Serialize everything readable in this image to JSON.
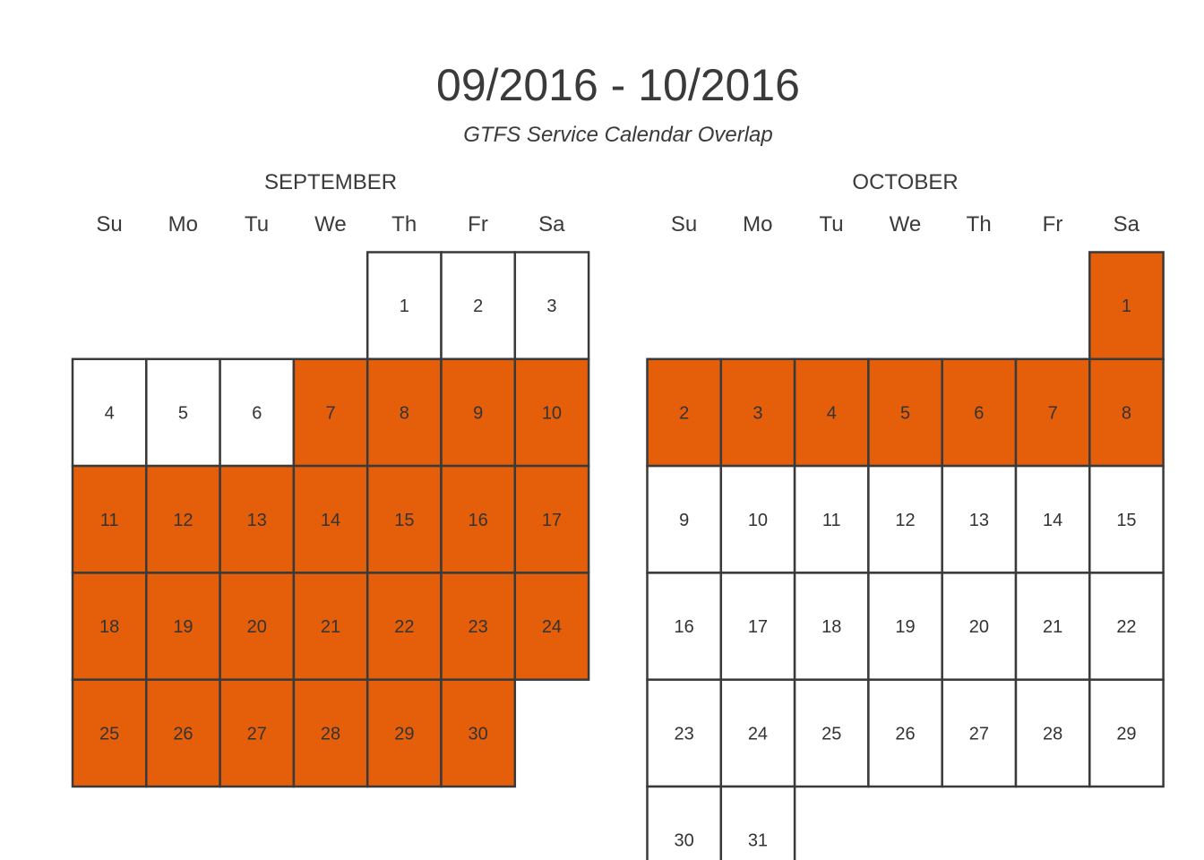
{
  "header": {
    "title": "09/2016 - 10/2016",
    "subtitle": "GTFS Service Calendar Overlap"
  },
  "colors": {
    "active": "#e55f0a",
    "inactive": "#ffffff",
    "border": "#3a3a3a",
    "text": "#3a3a3a"
  },
  "chart_data": {
    "type": "heatmap",
    "title": "09/2016 - 10/2016",
    "subtitle": "GTFS Service Calendar Overlap",
    "weekdays": [
      "Su",
      "Mo",
      "Tu",
      "We",
      "Th",
      "Fr",
      "Sa"
    ],
    "months": [
      {
        "name": "SEPTEMBER",
        "year": 2016,
        "month": 9,
        "days_in_month": 30,
        "first_weekday": 4,
        "active_days": [
          7,
          8,
          9,
          10,
          11,
          12,
          13,
          14,
          15,
          16,
          17,
          18,
          19,
          20,
          21,
          22,
          23,
          24,
          25,
          26,
          27,
          28,
          29,
          30
        ]
      },
      {
        "name": "OCTOBER",
        "year": 2016,
        "month": 10,
        "days_in_month": 31,
        "first_weekday": 6,
        "active_days": [
          1,
          2,
          3,
          4,
          5,
          6,
          7,
          8
        ]
      }
    ]
  }
}
